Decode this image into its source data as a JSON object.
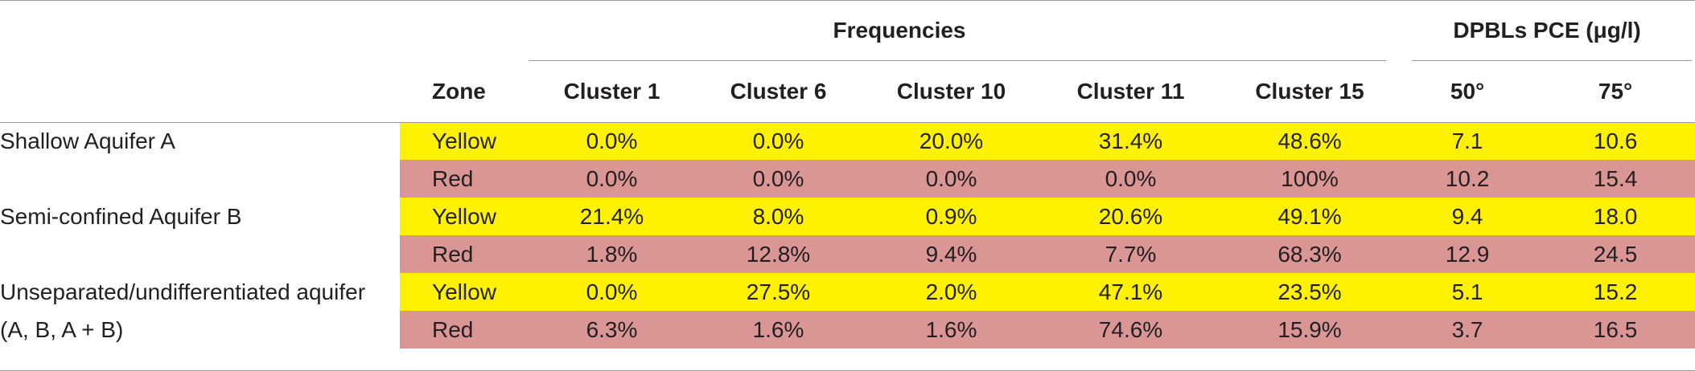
{
  "header": {
    "group_frequencies": "Frequencies",
    "group_dpbls": "DPBLs PCE (μg/l)",
    "zone": "Zone",
    "cluster1": "Cluster 1",
    "cluster6": "Cluster 6",
    "cluster10": "Cluster 10",
    "cluster11": "Cluster 11",
    "cluster15": "Cluster 15",
    "p50": "50°",
    "p75": "75°"
  },
  "rows": [
    {
      "aquifer": "Shallow Aquifer A",
      "zone": "Yellow",
      "c1": "0.0%",
      "c6": "0.0%",
      "c10": "20.0%",
      "c11": "31.4%",
      "c15": "48.6%",
      "p50": "7.1",
      "p75": "10.6"
    },
    {
      "aquifer": "",
      "zone": "Red",
      "c1": "0.0%",
      "c6": "0.0%",
      "c10": "0.0%",
      "c11": "0.0%",
      "c15": "100%",
      "p50": "10.2",
      "p75": "15.4"
    },
    {
      "aquifer": "Semi-confined Aquifer B",
      "zone": "Yellow",
      "c1": "21.4%",
      "c6": "8.0%",
      "c10": "0.9%",
      "c11": "20.6%",
      "c15": "49.1%",
      "p50": "9.4",
      "p75": "18.0"
    },
    {
      "aquifer": "",
      "zone": "Red",
      "c1": "1.8%",
      "c6": "12.8%",
      "c10": "9.4%",
      "c11": "7.7%",
      "c15": "68.3%",
      "p50": "12.9",
      "p75": "24.5"
    },
    {
      "aquifer": "Unseparated/undifferentiated aquifer",
      "zone": "Yellow",
      "c1": "0.0%",
      "c6": "27.5%",
      "c10": "2.0%",
      "c11": "47.1%",
      "c15": "23.5%",
      "p50": "5.1",
      "p75": "15.2"
    },
    {
      "aquifer": "(A, B, A + B)",
      "zone": "Red",
      "c1": "6.3%",
      "c6": "1.6%",
      "c10": "1.6%",
      "c11": "74.6%",
      "c15": "15.9%",
      "p50": "3.7",
      "p75": "16.5"
    }
  ],
  "colors": {
    "yellow": "#fff200",
    "red": "#da9595"
  }
}
